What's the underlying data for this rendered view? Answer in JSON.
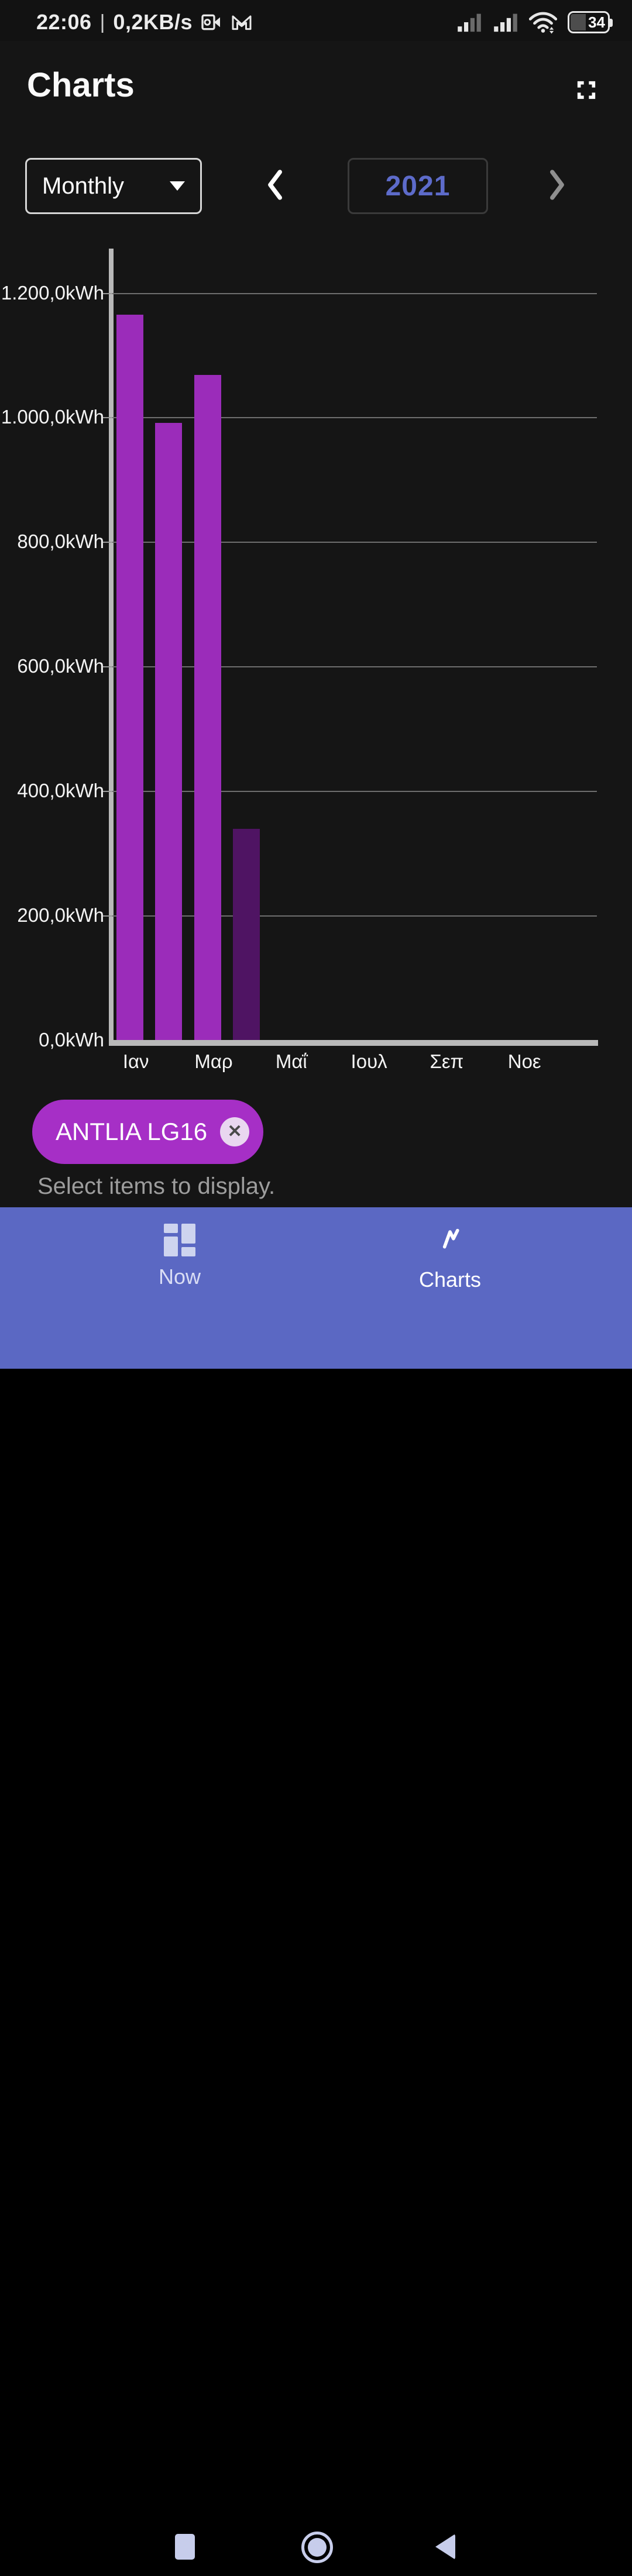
{
  "status_bar": {
    "time": "22:06",
    "separator": "|",
    "net_speed": "0,2KB/s",
    "battery_percent": "34"
  },
  "header": {
    "title": "Charts"
  },
  "controls": {
    "period_selected": "Monthly",
    "year": "2021"
  },
  "chart_data": {
    "type": "bar",
    "unit": "kWh",
    "y_axis_max": 1271,
    "ylim": [
      0,
      1271
    ],
    "grid": true,
    "y_ticks": [
      {
        "value": 0,
        "label": "0,0kWh"
      },
      {
        "value": 200,
        "label": "200,0kWh"
      },
      {
        "value": 400,
        "label": "400,0kWh"
      },
      {
        "value": 600,
        "label": "600,0kWh"
      },
      {
        "value": 800,
        "label": "800,0kWh"
      },
      {
        "value": 1000,
        "label": "1.000,0kWh"
      },
      {
        "value": 1200,
        "label": "1.200,0kWh"
      }
    ],
    "x_ticks": [
      {
        "month_index": 0,
        "label": "Ιαν"
      },
      {
        "month_index": 2,
        "label": "Μαρ"
      },
      {
        "month_index": 4,
        "label": "Μαΐ"
      },
      {
        "month_index": 6,
        "label": "Ιουλ"
      },
      {
        "month_index": 8,
        "label": "Σεπ"
      },
      {
        "month_index": 10,
        "label": "Νοε"
      }
    ],
    "months_in_view": 12,
    "series": [
      {
        "name": "ANTLIA LG16",
        "bars": [
          {
            "month_index": 0,
            "value": 1165,
            "color": "#9b2cba"
          },
          {
            "month_index": 1,
            "value": 991,
            "color": "#9b2cba"
          },
          {
            "month_index": 2,
            "value": 1068,
            "color": "#9b2cba"
          },
          {
            "month_index": 3,
            "value": 339,
            "color": "#4f1463"
          }
        ]
      }
    ],
    "legend_position": "bottom-left"
  },
  "legend_chip": {
    "label": "ANTLIA LG16",
    "close_glyph": "✕"
  },
  "hint_text": "Select items to display.",
  "bottom_nav": {
    "items": [
      {
        "label": "Now",
        "icon": "dashboard-icon",
        "active": false
      },
      {
        "label": "Charts",
        "icon": "line-chart-icon",
        "active": true
      }
    ]
  },
  "colors": {
    "background": "#151515",
    "bar_purple": "#9b2cba",
    "bar_dark_purple": "#4f1463",
    "chip_purple": "#a62fc6",
    "nav_blue": "#5b68c3",
    "year_text": "#5d6bca",
    "axis_light": "#b9b9b9",
    "gridline": "#6e6e6e"
  }
}
